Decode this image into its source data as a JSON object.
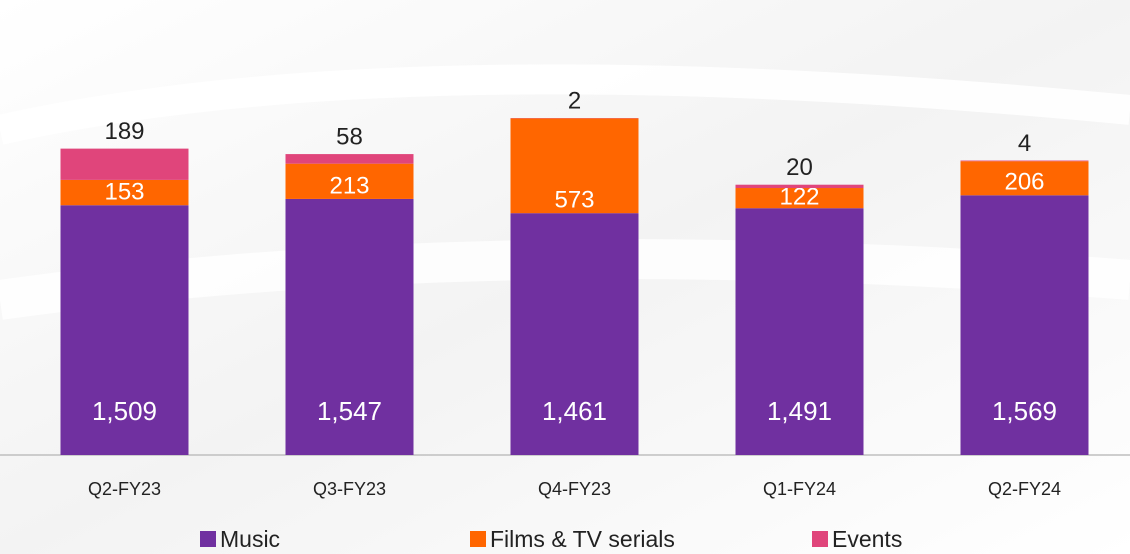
{
  "chart_data": {
    "type": "stacked-bar",
    "categories": [
      "Q2-FY23",
      "Q3-FY23",
      "Q4-FY23",
      "Q1-FY24",
      "Q2-FY24"
    ],
    "series": [
      {
        "name": "Music",
        "color": "#7030a0",
        "values": [
          1509,
          1547,
          1461,
          1491,
          1569
        ],
        "value_labels": [
          "1,509",
          "1,547",
          "1,461",
          "1,491",
          "1,569"
        ]
      },
      {
        "name": "Films & TV serials",
        "color": "#ff6600",
        "values": [
          153,
          213,
          573,
          122,
          206
        ]
      },
      {
        "name": "Events",
        "color": "#e0457b",
        "values": [
          189,
          58,
          2,
          20,
          4
        ]
      }
    ]
  }
}
